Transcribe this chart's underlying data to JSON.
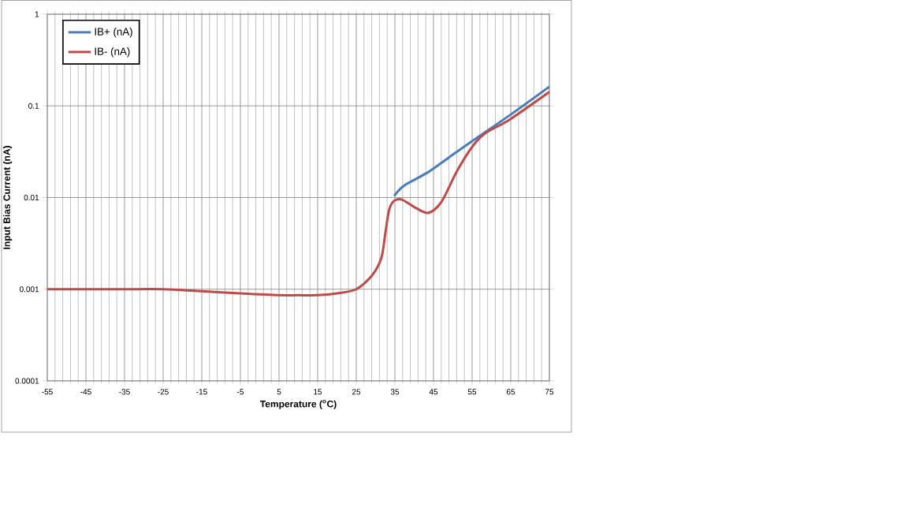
{
  "chart_data": {
    "type": "line",
    "xlabel": "Temperature ($^{o}$C)",
    "ylabel": "Input Bias Current (nA)",
    "xlim": [
      -55,
      75
    ],
    "xticks": [
      -55,
      -45,
      -35,
      -25,
      -15,
      -5,
      5,
      15,
      25,
      35,
      45,
      55,
      65,
      75
    ],
    "ylim": [
      0.0001,
      1
    ],
    "yticks": [
      0.0001,
      0.001,
      0.01,
      0.1,
      1
    ],
    "log": "y",
    "grid": true,
    "legend": "top left",
    "marker": "none",
    "line_style": "solid",
    "series": [
      {
        "name": "IB+ (nA)",
        "color": "#4a7ebb",
        "x": [
          34.8,
          37.5,
          43.6,
          49.8,
          55.2,
          65.1,
          75
        ],
        "values": [
          0.0104,
          0.0136,
          0.0189,
          0.029,
          0.0418,
          0.081,
          0.162
        ]
      },
      {
        "name": "IB- (nA)",
        "color": "#be4b48",
        "x": [
          -55,
          -45,
          -35,
          -25,
          -15,
          -5,
          5,
          10,
          15,
          20,
          25,
          29,
          31.5,
          32.5,
          33.5,
          34.8,
          36.8,
          40.2,
          43.6,
          47,
          51.1,
          55.2,
          58.6,
          64.7,
          75
        ],
        "values": [
          0.001,
          0.001,
          0.001,
          0.001,
          0.00095,
          0.0009,
          0.00086,
          0.00086,
          0.00086,
          0.0009,
          0.001,
          0.0014,
          0.0022,
          0.004,
          0.0073,
          0.0092,
          0.0095,
          0.0078,
          0.0068,
          0.0089,
          0.0195,
          0.0366,
          0.0509,
          0.0708,
          0.142
        ]
      }
    ]
  }
}
